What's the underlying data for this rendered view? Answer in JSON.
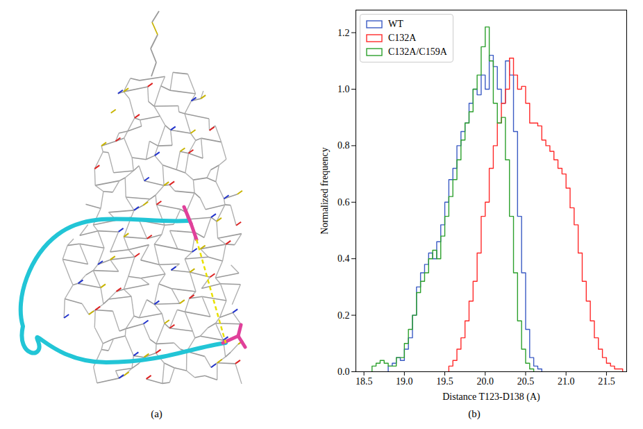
{
  "figure": {
    "panel_labels": [
      "(a)",
      "(b)"
    ]
  },
  "chart_data": {
    "type": "histogram",
    "xlabel": "Distance T123-D138 (A)",
    "ylabel": "Normalized frequency",
    "xlim": [
      18.4,
      21.75
    ],
    "xticks": [
      18.5,
      {
        "value": 19,
        "label": "19.0"
      },
      19.5,
      {
        "value": 20,
        "label": "20.0"
      },
      20.5,
      {
        "value": 21,
        "label": "21.0"
      },
      21.5
    ],
    "ylim": [
      0,
      1.28
    ],
    "yticks": [
      {
        "value": 0,
        "label": "0.0"
      },
      0.2,
      0.4,
      0.6,
      0.8,
      {
        "value": 1,
        "label": "1.0"
      },
      1.2
    ],
    "legend": "upper left",
    "series": [
      {
        "name": "WT",
        "color": "#3b5bc4",
        "bins": [
          18.8,
          18.85,
          18.9,
          18.95,
          19.0,
          19.05,
          19.1,
          19.15,
          19.2,
          19.25,
          19.3,
          19.35,
          19.4,
          19.45,
          19.5,
          19.55,
          19.6,
          19.65,
          19.7,
          19.75,
          19.8,
          19.85,
          19.9,
          19.95,
          20.0,
          20.05,
          20.1,
          20.15,
          20.2,
          20.25,
          20.3,
          20.35,
          20.4,
          20.45,
          20.5,
          20.55,
          20.6,
          20.65,
          20.7
        ],
        "values": [
          0.02,
          0.03,
          0.05,
          0.04,
          0.08,
          0.12,
          0.2,
          0.3,
          0.35,
          0.38,
          0.42,
          0.4,
          0.46,
          0.52,
          0.6,
          0.68,
          0.72,
          0.8,
          0.85,
          0.88,
          0.95,
          1.0,
          0.98,
          1.05,
          1.0,
          1.12,
          1.08,
          1.0,
          0.95,
          1.1,
          1.05,
          0.85,
          0.55,
          0.35,
          0.15,
          0.05,
          0.02,
          0.01
        ]
      },
      {
        "name": "C132A",
        "color": "#ff2a2a",
        "bins": [
          19.55,
          19.6,
          19.65,
          19.7,
          19.75,
          19.8,
          19.85,
          19.9,
          19.95,
          20.0,
          20.05,
          20.1,
          20.15,
          20.2,
          20.25,
          20.3,
          20.35,
          20.4,
          20.45,
          20.5,
          20.55,
          20.6,
          20.65,
          20.7,
          20.75,
          20.8,
          20.85,
          20.9,
          20.95,
          21.0,
          21.05,
          21.1,
          21.15,
          21.2,
          21.25,
          21.3,
          21.35,
          21.4,
          21.45,
          21.5,
          21.55,
          21.6,
          21.65,
          21.7
        ],
        "values": [
          0.02,
          0.04,
          0.08,
          0.12,
          0.18,
          0.25,
          0.32,
          0.42,
          0.55,
          0.6,
          0.72,
          0.8,
          0.88,
          0.95,
          1.0,
          1.11,
          1.05,
          1.0,
          1.01,
          0.95,
          0.88,
          0.88,
          0.87,
          0.82,
          0.8,
          0.78,
          0.75,
          0.72,
          0.7,
          0.65,
          0.58,
          0.52,
          0.42,
          0.32,
          0.25,
          0.18,
          0.12,
          0.08,
          0.05,
          0.03,
          0.02,
          0.01,
          0.01
        ]
      },
      {
        "name": "C132A/C159A",
        "color": "#2ca02c",
        "bins": [
          18.6,
          18.65,
          18.7,
          18.75,
          18.8,
          18.85,
          18.9,
          18.95,
          19.0,
          19.05,
          19.1,
          19.15,
          19.2,
          19.25,
          19.3,
          19.35,
          19.4,
          19.45,
          19.5,
          19.55,
          19.6,
          19.65,
          19.7,
          19.75,
          19.8,
          19.85,
          19.9,
          19.95,
          20.0,
          20.05,
          20.1,
          20.15,
          20.2,
          20.25,
          20.3,
          20.35,
          20.4,
          20.45,
          20.5,
          20.55,
          20.6
        ],
        "values": [
          0.02,
          0.03,
          0.04,
          0.03,
          0.02,
          0.02,
          0.05,
          0.05,
          0.1,
          0.15,
          0.2,
          0.28,
          0.32,
          0.35,
          0.4,
          0.43,
          0.4,
          0.48,
          0.55,
          0.62,
          0.68,
          0.75,
          0.82,
          0.88,
          0.92,
          1.0,
          1.05,
          1.15,
          1.22,
          1.1,
          0.95,
          0.88,
          0.9,
          0.75,
          0.55,
          0.35,
          0.18,
          0.08,
          0.03,
          0.01
        ]
      }
    ]
  }
}
